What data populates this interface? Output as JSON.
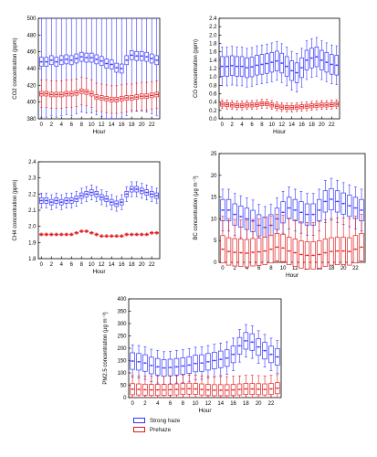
{
  "legend": {
    "strong_haze": "Strong haze",
    "prehaze": "Prehaze"
  },
  "colors": {
    "strong_haze": "#3333ff",
    "prehaze": "#e31a1c",
    "axis": "#000000"
  },
  "chart_data": [
    {
      "type": "boxplot",
      "id": "co2",
      "ylabel": "CO2 concentration (ppm)",
      "xlabel": "Hour",
      "ylim": [
        380,
        500
      ],
      "yticks": [
        380,
        400,
        420,
        440,
        460,
        480,
        500
      ],
      "x_ticks": [
        0,
        2,
        4,
        6,
        8,
        10,
        12,
        14,
        16,
        18,
        20,
        22
      ],
      "series": [
        {
          "name": "Strong haze",
          "median": [
            448,
            448,
            450,
            448,
            450,
            451,
            450,
            452,
            454,
            453,
            453,
            451,
            449,
            446,
            445,
            441,
            440,
            450,
            456,
            455,
            455,
            454,
            452,
            450
          ]
        },
        {
          "name": "Prehaze",
          "median": [
            410,
            410,
            409,
            409,
            409,
            410,
            410,
            411,
            413,
            412,
            410,
            406,
            405,
            404,
            403,
            403,
            404,
            405,
            405,
            406,
            407,
            407,
            408,
            409
          ]
        }
      ]
    },
    {
      "type": "boxplot",
      "id": "co",
      "ylabel": "CO concentration (ppm)",
      "xlabel": "Hour",
      "ylim": [
        0,
        2.4
      ],
      "yticks": [
        0.0,
        0.2,
        0.4,
        0.6,
        0.8,
        1.0,
        1.2,
        1.4,
        1.6,
        1.8,
        2.0,
        2.2,
        2.4
      ],
      "x_ticks": [
        0,
        2,
        4,
        6,
        8,
        10,
        12,
        14,
        16,
        18,
        20,
        22
      ],
      "series": [
        {
          "name": "Strong haze",
          "median": [
            1.25,
            1.25,
            1.27,
            1.25,
            1.25,
            1.22,
            1.24,
            1.28,
            1.3,
            1.32,
            1.35,
            1.38,
            1.33,
            1.25,
            1.15,
            1.1,
            1.22,
            1.4,
            1.45,
            1.48,
            1.4,
            1.35,
            1.3,
            1.28
          ]
        },
        {
          "name": "Prehaze",
          "median": [
            0.35,
            0.34,
            0.33,
            0.32,
            0.32,
            0.33,
            0.33,
            0.34,
            0.36,
            0.36,
            0.33,
            0.3,
            0.28,
            0.27,
            0.27,
            0.28,
            0.29,
            0.3,
            0.31,
            0.32,
            0.33,
            0.33,
            0.34,
            0.35
          ]
        }
      ]
    },
    {
      "type": "boxplot",
      "id": "ch4",
      "ylabel": "CH4 concentration (ppm)",
      "xlabel": "Hour",
      "ylim": [
        1.8,
        2.4
      ],
      "yticks": [
        1.8,
        1.9,
        2.0,
        2.1,
        2.2,
        2.3,
        2.4
      ],
      "x_ticks": [
        0,
        2,
        4,
        6,
        8,
        10,
        12,
        14,
        16,
        18,
        20,
        22
      ],
      "series": [
        {
          "name": "Strong haze",
          "median": [
            2.16,
            2.16,
            2.15,
            2.16,
            2.15,
            2.16,
            2.16,
            2.17,
            2.19,
            2.2,
            2.21,
            2.2,
            2.18,
            2.17,
            2.15,
            2.14,
            2.15,
            2.2,
            2.23,
            2.23,
            2.22,
            2.21,
            2.2,
            2.19
          ]
        },
        {
          "name": "Prehaze",
          "median": [
            1.95,
            1.95,
            1.95,
            1.95,
            1.95,
            1.95,
            1.95,
            1.96,
            1.97,
            1.97,
            1.96,
            1.95,
            1.94,
            1.94,
            1.94,
            1.94,
            1.94,
            1.95,
            1.95,
            1.95,
            1.95,
            1.95,
            1.96,
            1.96
          ]
        }
      ]
    },
    {
      "type": "boxplot",
      "id": "bc",
      "ylabel": "BC concentration (μg m⁻³)",
      "xlabel": "Hour",
      "ylim": [
        0,
        25
      ],
      "yticks": [
        0,
        5,
        10,
        15,
        20,
        25
      ],
      "x_ticks": [
        0,
        2,
        4,
        6,
        8,
        10,
        12,
        14,
        16,
        18,
        20,
        22
      ],
      "series": [
        {
          "name": "Strong haze",
          "median": [
            12.0,
            12.0,
            11.0,
            10.5,
            10.0,
            9.5,
            8.5,
            8.0,
            8.5,
            10.0,
            11.5,
            12.5,
            12.0,
            11.5,
            11.0,
            11.0,
            12.0,
            14.0,
            14.5,
            14.0,
            13.5,
            13.0,
            12.5,
            12.0
          ]
        },
        {
          "name": "Prehaze",
          "median": [
            3.0,
            2.5,
            2.3,
            2.2,
            2.1,
            2.3,
            2.4,
            2.6,
            3.0,
            3.5,
            3.3,
            2.6,
            2.2,
            1.8,
            1.6,
            1.6,
            1.8,
            2.2,
            2.5,
            2.6,
            2.6,
            2.5,
            3.0,
            3.5
          ]
        }
      ]
    },
    {
      "type": "boxplot",
      "id": "pm25",
      "ylabel": "PM2.5 concentration (μg m⁻³)",
      "xlabel": "Hour",
      "ylim": [
        0,
        400
      ],
      "yticks": [
        0,
        50,
        100,
        150,
        200,
        250,
        300,
        350,
        400
      ],
      "x_ticks": [
        0,
        2,
        4,
        6,
        8,
        10,
        12,
        14,
        16,
        18,
        20,
        22
      ],
      "series": [
        {
          "name": "Strong haze",
          "median": [
            148,
            145,
            140,
            130,
            125,
            120,
            122,
            125,
            128,
            132,
            138,
            140,
            145,
            150,
            155,
            160,
            175,
            210,
            230,
            225,
            205,
            190,
            175,
            165
          ]
        },
        {
          "name": "Prehaze",
          "median": [
            34,
            33,
            32,
            31,
            31,
            31,
            32,
            33,
            35,
            36,
            35,
            33,
            31,
            30,
            30,
            30,
            31,
            33,
            35,
            35,
            34,
            33,
            35,
            38
          ]
        }
      ]
    }
  ]
}
